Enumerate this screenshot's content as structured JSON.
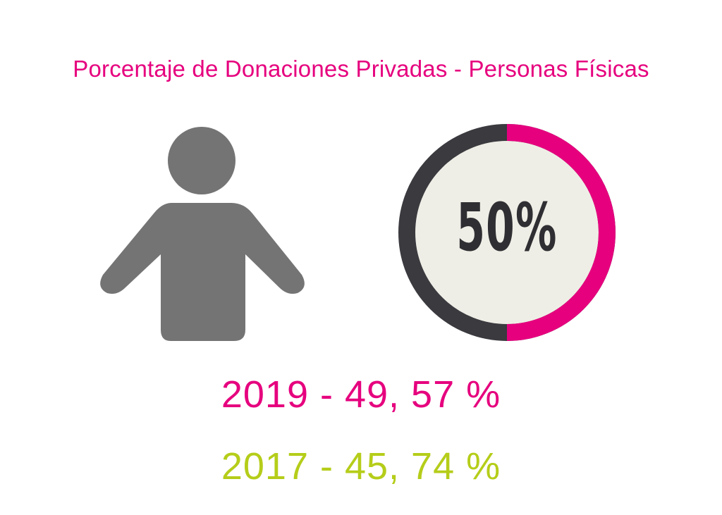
{
  "title": "Porcentaje de Donaciones Privadas  - Personas Físicas",
  "icons": {
    "person": "person-icon"
  },
  "colors": {
    "accent_pink": "#e6007e",
    "accent_green": "#b5cd19",
    "gauge_track": "#3a3a3f",
    "gauge_center": "#efeee6",
    "icon_gray": "#747474",
    "label_dark": "#2f2f33"
  },
  "chart_data": {
    "type": "gauge",
    "value": 50,
    "max": 100,
    "label": "50%"
  },
  "stats": [
    {
      "text": "2019 - 49, 57 %"
    },
    {
      "text": "2017 - 45, 74 %"
    }
  ]
}
